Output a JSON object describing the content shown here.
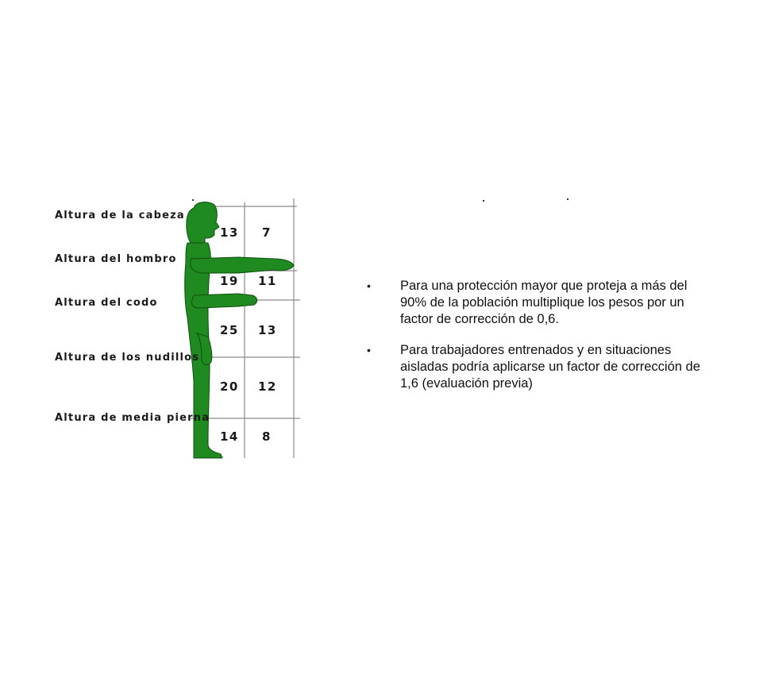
{
  "height_labels": [
    "Altura de la cabeza",
    "Altura del hombro",
    "Altura del codo",
    "Altura de los nudillos",
    "Altura de media pierna"
  ],
  "table": {
    "rows": [
      [
        "13",
        "7"
      ],
      [
        "19",
        "11"
      ],
      [
        "25",
        "13"
      ],
      [
        "20",
        "12"
      ],
      [
        "14",
        "8"
      ]
    ]
  },
  "notes": [
    "Para una protección mayor que proteja a más del 90% de la población multiplique los pesos por un factor de corrección de 0,6.",
    "Para trabajadores entrenados y en situaciones aisladas podría aplicarse un factor de corrección de 1,6 (evaluación previa)"
  ],
  "bullet_symbol": "•",
  "colors": {
    "figure_fill": "#1f8a1f",
    "figure_stroke": "#0f4f0f",
    "grid_line": "#8a8a8a"
  }
}
